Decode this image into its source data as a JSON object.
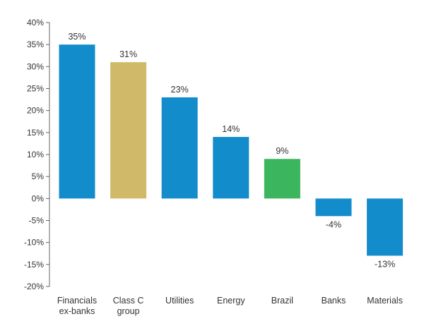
{
  "chart_data": {
    "type": "bar",
    "title": "",
    "xlabel": "",
    "ylabel": "",
    "ylim": [
      -20,
      40
    ],
    "y_ticks": [
      40,
      35,
      30,
      25,
      20,
      15,
      10,
      5,
      0,
      -5,
      -10,
      -15,
      -20
    ],
    "y_tick_suffix": "%",
    "grid": false,
    "categories": [
      [
        "Financials",
        "ex-banks"
      ],
      [
        "Class C",
        "group"
      ],
      [
        "Utilities"
      ],
      [
        "Energy"
      ],
      [
        "Brazil"
      ],
      [
        "Banks"
      ],
      [
        "Materials"
      ]
    ],
    "values": [
      35,
      31,
      23,
      14,
      9,
      -4,
      -13
    ],
    "data_labels": [
      "35%",
      "31%",
      "23%",
      "14%",
      "9%",
      "-4%",
      "-13%"
    ],
    "colors": [
      "#138ccb",
      "#d1b96a",
      "#138ccb",
      "#138ccb",
      "#3cb65e",
      "#138ccb",
      "#138ccb"
    ]
  }
}
